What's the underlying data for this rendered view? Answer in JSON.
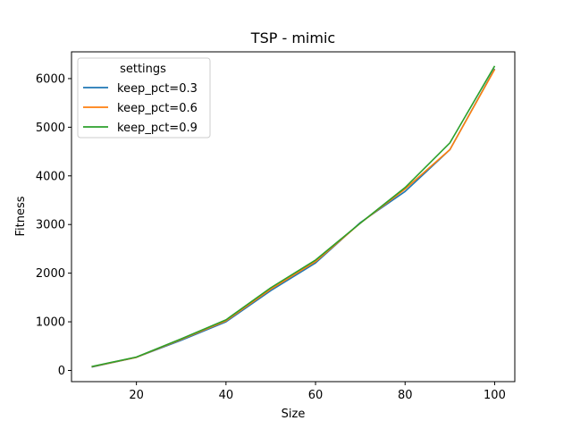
{
  "chart_data": {
    "type": "line",
    "title": "TSP - mimic",
    "xlabel": "Size",
    "ylabel": "Fitness",
    "xlim": [
      5.5,
      104.5
    ],
    "ylim": [
      -230,
      6550
    ],
    "xticks": [
      20,
      40,
      60,
      80,
      100
    ],
    "yticks": [
      0,
      1000,
      2000,
      3000,
      4000,
      5000,
      6000
    ],
    "grid": false,
    "legend": {
      "title": "settings",
      "position": "top-left"
    },
    "x": [
      10,
      20,
      30,
      40,
      50,
      60,
      70,
      80,
      90,
      100
    ],
    "series": [
      {
        "name": "keep_pct=0.3",
        "color": "#1f77b4",
        "values": [
          70,
          270,
          620,
          1000,
          1640,
          2210,
          3040,
          3680,
          4540,
          6200
        ]
      },
      {
        "name": "keep_pct=0.6",
        "color": "#ff7f0e",
        "values": [
          75,
          270,
          640,
          1020,
          1670,
          2240,
          3030,
          3730,
          4540,
          6190
        ]
      },
      {
        "name": "keep_pct=0.9",
        "color": "#2ca02c",
        "values": [
          80,
          275,
          650,
          1040,
          1700,
          2270,
          3030,
          3760,
          4680,
          6260
        ]
      }
    ]
  }
}
